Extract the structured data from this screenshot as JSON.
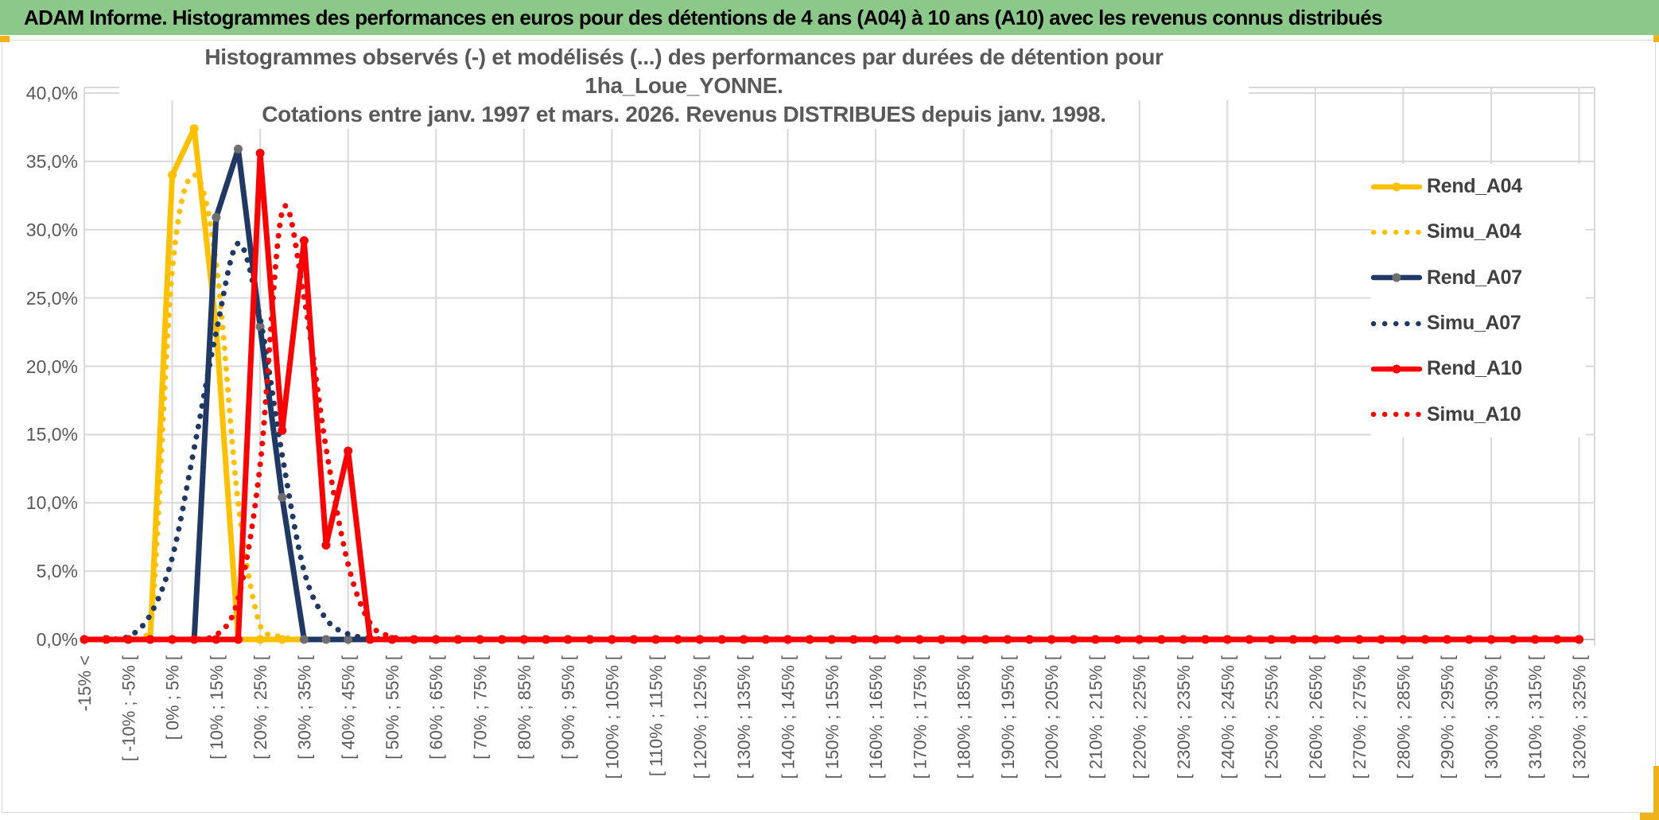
{
  "header": {
    "title": "ADAM Informe. Histogrammes des performances en euros pour des détentions de 4 ans (A04) à 10 ans (A10) avec les revenus connus distribués",
    "bar_color": "#8CC88A"
  },
  "accent_color": "#EFB319",
  "chart_data": {
    "type": "line",
    "title": "Histogrammes observés (-) et modélisés (...) des performances par durées de détention pour 1ha_Loue_YONNE.",
    "subtitle": "Cotations entre janv. 1997 et mars. 2026. Revenus DISTRIBUES depuis janv. 1998.",
    "grid": true,
    "legend_position": "right-inside",
    "ylabel": "",
    "xlabel": "",
    "ylim": [
      0,
      40
    ],
    "y_tick_step": 5,
    "y_tick_labels": [
      "0,0%",
      "5,0%",
      "10,0%",
      "15,0%",
      "20,0%",
      "25,0%",
      "30,0%",
      "35,0%",
      "40,0%"
    ],
    "categories": [
      "-15% <",
      "",
      "[ -10% ; -5% [",
      "",
      "[ 0% ; 5% [",
      "",
      "[ 10% ; 15% [",
      "",
      "[ 20% ; 25% [",
      "",
      "[ 30% ; 35% [",
      "",
      "[ 40% ; 45% [",
      "",
      "[ 50% ; 55% [",
      "",
      "[ 60% ; 65% [",
      "",
      "[ 70% ; 75% [",
      "",
      "[ 80% ; 85% [",
      "",
      "[ 90% ; 95% [",
      "",
      "[ 100% ; 105% [",
      "",
      "[ 110% ; 115% [",
      "",
      "[ 120% ; 125% [",
      "",
      "[ 130% ; 135% [",
      "",
      "[ 140% ; 145% [",
      "",
      "[ 150% ; 155% [",
      "",
      "[ 160% ; 165% [",
      "",
      "[ 170% ; 175% [",
      "",
      "[ 180% ; 185% [",
      "",
      "[ 190% ; 195% [",
      "",
      "[ 200% ; 205% [",
      "",
      "[ 210% ; 215% [",
      "",
      "[ 220% ; 225% [",
      "",
      "[ 230% ; 235% [",
      "",
      "[ 240% ; 245% [",
      "",
      "[ 250% ; 255% [",
      "",
      "[ 260% ; 265% [",
      "",
      "[ 270% ; 275% [",
      "",
      "[ 280% ; 285% [",
      "",
      "[ 290% ; 295% [",
      "",
      "[ 300% ; 305% [",
      "",
      "[ 310% ; 315% [",
      "",
      "[ 320% ; 325% ["
    ],
    "series": [
      {
        "name": "Rend_A04",
        "color": "#FFC000",
        "style": "solid",
        "marker": "circle",
        "marker_color": "#FFC000",
        "values": [
          0,
          0,
          0,
          0,
          34,
          37.4,
          22.8,
          0,
          0,
          0,
          0,
          0,
          0,
          0,
          0,
          0,
          0,
          0,
          0,
          0,
          0,
          0,
          0,
          0,
          0,
          0,
          0,
          0,
          0,
          0,
          0,
          0,
          0,
          0,
          0,
          0,
          0,
          0,
          0,
          0,
          0,
          0,
          0,
          0,
          0,
          0,
          0,
          0,
          0,
          0,
          0,
          0,
          0,
          0,
          0,
          0,
          0,
          0,
          0,
          0,
          0,
          0,
          0,
          0,
          0,
          0,
          0,
          0,
          0
        ]
      },
      {
        "name": "Simu_A04",
        "color": "#FFC000",
        "style": "dotted",
        "marker": "none",
        "marker_color": "#FFC000",
        "values": [
          0,
          0,
          0,
          0.5,
          27,
          34,
          27.5,
          10,
          1,
          0.2,
          0,
          0,
          0,
          0,
          0,
          0,
          0,
          0,
          0,
          0,
          0,
          0,
          0,
          0,
          0,
          0,
          0,
          0,
          0,
          0,
          0,
          0,
          0,
          0,
          0,
          0,
          0,
          0,
          0,
          0,
          0,
          0,
          0,
          0,
          0,
          0,
          0,
          0,
          0,
          0,
          0,
          0,
          0,
          0,
          0,
          0,
          0,
          0,
          0,
          0,
          0,
          0,
          0,
          0,
          0,
          0,
          0,
          0,
          0
        ]
      },
      {
        "name": "Rend_A07",
        "color": "#1F3864",
        "style": "solid",
        "marker": "circle",
        "marker_color": "#6F6F6F",
        "values": [
          0,
          0,
          0,
          0,
          0,
          0,
          30.9,
          35.9,
          22.9,
          10.4,
          0,
          0,
          0,
          0,
          0,
          0,
          0,
          0,
          0,
          0,
          0,
          0,
          0,
          0,
          0,
          0,
          0,
          0,
          0,
          0,
          0,
          0,
          0,
          0,
          0,
          0,
          0,
          0,
          0,
          0,
          0,
          0,
          0,
          0,
          0,
          0,
          0,
          0,
          0,
          0,
          0,
          0,
          0,
          0,
          0,
          0,
          0,
          0,
          0,
          0,
          0,
          0,
          0,
          0,
          0,
          0,
          0,
          0,
          0
        ]
      },
      {
        "name": "Simu_A07",
        "color": "#1F3864",
        "style": "dotted",
        "marker": "none",
        "marker_color": "#1F3864",
        "values": [
          0,
          0,
          0.2,
          1.8,
          6,
          14,
          22.5,
          29,
          23.5,
          13.5,
          5,
          1.5,
          0.4,
          0.1,
          0,
          0,
          0,
          0,
          0,
          0,
          0,
          0,
          0,
          0,
          0,
          0,
          0,
          0,
          0,
          0,
          0,
          0,
          0,
          0,
          0,
          0,
          0,
          0,
          0,
          0,
          0,
          0,
          0,
          0,
          0,
          0,
          0,
          0,
          0,
          0,
          0,
          0,
          0,
          0,
          0,
          0,
          0,
          0,
          0,
          0,
          0,
          0,
          0,
          0,
          0,
          0,
          0,
          0,
          0
        ]
      },
      {
        "name": "Rend_A10",
        "color": "#FF0000",
        "style": "solid",
        "marker": "circle",
        "marker_color": "#FF0000",
        "values": [
          0,
          0,
          0,
          0,
          0,
          0,
          0,
          0,
          35.6,
          15.3,
          29.2,
          6.9,
          13.8,
          0,
          0,
          0,
          0,
          0,
          0,
          0,
          0,
          0,
          0,
          0,
          0,
          0,
          0,
          0,
          0,
          0,
          0,
          0,
          0,
          0,
          0,
          0,
          0,
          0,
          0,
          0,
          0,
          0,
          0,
          0,
          0,
          0,
          0,
          0,
          0,
          0,
          0,
          0,
          0,
          0,
          0,
          0,
          0,
          0,
          0,
          0,
          0,
          0,
          0,
          0,
          0,
          0,
          0,
          0,
          0
        ]
      },
      {
        "name": "Simu_A10",
        "color": "#FF0000",
        "style": "dotted",
        "marker": "none",
        "marker_color": "#FF0000",
        "values": [
          0,
          0,
          0,
          0,
          0,
          0,
          0.3,
          3,
          12.8,
          31.3,
          25,
          14,
          5.5,
          1.2,
          0.2,
          0,
          0,
          0,
          0,
          0,
          0,
          0,
          0,
          0,
          0,
          0,
          0,
          0,
          0,
          0,
          0,
          0,
          0,
          0,
          0,
          0,
          0,
          0,
          0,
          0,
          0,
          0,
          0,
          0,
          0,
          0,
          0,
          0,
          0,
          0,
          0,
          0,
          0,
          0,
          0,
          0,
          0,
          0,
          0,
          0,
          0,
          0,
          0,
          0,
          0,
          0,
          0,
          0,
          0
        ]
      }
    ]
  }
}
